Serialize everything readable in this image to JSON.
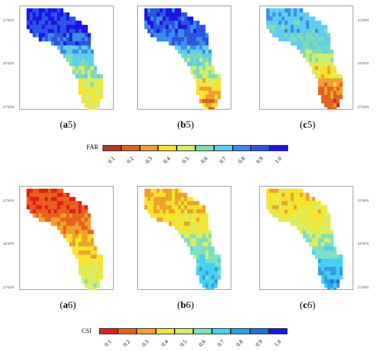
{
  "panels": [
    {
      "id": "a5",
      "letter": "a",
      "num": "5",
      "metric": "FAR",
      "palette": "far",
      "base": [
        0.92,
        0.9,
        0.85,
        0.7,
        0.6,
        0.55,
        0.45,
        0.4,
        0.38,
        0.38
      ],
      "noise": 0.1
    },
    {
      "id": "b5",
      "letter": "b",
      "num": "5",
      "metric": "FAR",
      "palette": "far",
      "base": [
        0.88,
        0.85,
        0.8,
        0.68,
        0.58,
        0.5,
        0.38,
        0.3,
        0.25,
        0.25
      ],
      "noise": 0.1
    },
    {
      "id": "c5",
      "letter": "c",
      "num": "5",
      "metric": "FAR",
      "palette": "far",
      "base": [
        0.68,
        0.65,
        0.62,
        0.55,
        0.45,
        0.35,
        0.25,
        0.2,
        0.15,
        0.15
      ],
      "noise": 0.08
    },
    {
      "id": "a6",
      "letter": "a",
      "num": "6",
      "metric": "CSI",
      "palette": "csi",
      "base": [
        0.1,
        0.12,
        0.18,
        0.22,
        0.28,
        0.32,
        0.38,
        0.42,
        0.45,
        0.45
      ],
      "noise": 0.06
    },
    {
      "id": "b6",
      "letter": "b",
      "num": "6",
      "metric": "CSI",
      "palette": "csi",
      "base": [
        0.28,
        0.3,
        0.35,
        0.42,
        0.5,
        0.55,
        0.62,
        0.66,
        0.66,
        0.66
      ],
      "noise": 0.07
    },
    {
      "id": "c6",
      "letter": "c",
      "num": "6",
      "metric": "CSI",
      "palette": "csi",
      "base": [
        0.34,
        0.36,
        0.4,
        0.45,
        0.52,
        0.58,
        0.66,
        0.72,
        0.74,
        0.74
      ],
      "noise": 0.07
    }
  ],
  "lat_ticks": [
    "35°00'N",
    "30°00'N",
    "25°00'N"
  ],
  "far_bar": {
    "title": "FAR",
    "ticks": [
      "0.1",
      "0.2",
      "0.3",
      "0.4",
      "0.5",
      "0.6",
      "0.7",
      "0.8",
      "0.9",
      "1.0"
    ],
    "colors": [
      "#b33a1c",
      "#e0621c",
      "#eea130",
      "#f7e330",
      "#d3ec6a",
      "#7fdcb0",
      "#5ecdf0",
      "#3a8de8",
      "#2a55e0",
      "#1c14e6"
    ]
  },
  "csi_bar": {
    "title": "CSI",
    "ticks": [
      "0.1",
      "0.2",
      "0.3",
      "0.4",
      "0.5",
      "0.6",
      "0.7",
      "0.8",
      "0.9",
      "1.0"
    ],
    "colors": [
      "#e01f1a",
      "#e8601c",
      "#f0a02c",
      "#f6e42e",
      "#d8ee60",
      "#7ee0c0",
      "#46d0f2",
      "#2f9ee8",
      "#1f6fde",
      "#161ce6"
    ]
  }
}
